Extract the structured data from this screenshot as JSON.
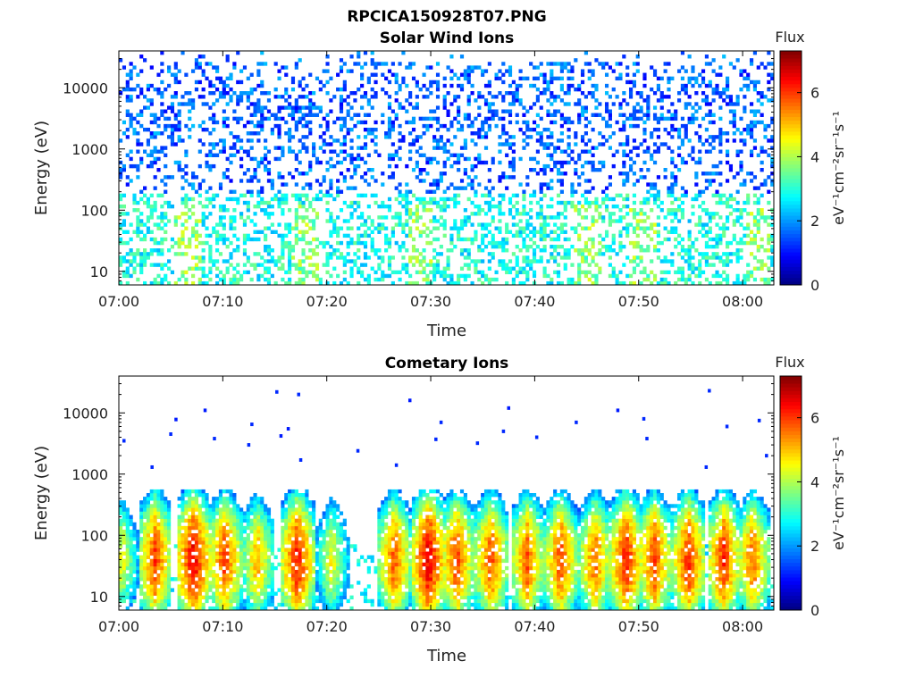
{
  "figure": {
    "title": "RPCICA150928T07.PNG"
  },
  "chart_data": [
    {
      "type": "heatmap",
      "title": "Solar Wind Ions",
      "xlabel": "Time",
      "ylabel": "Energy (eV)",
      "x_ticks": [
        "07:00",
        "07:10",
        "07:20",
        "07:30",
        "07:40",
        "07:50",
        "08:00"
      ],
      "y_ticks": [
        "10",
        "100",
        "1000",
        "10000"
      ],
      "y_scale": "log",
      "x_range_minutes": [
        0,
        63
      ],
      "y_range": [
        6,
        40000
      ],
      "colorbar": {
        "label_top": "Flux",
        "label_side": "eV⁻¹cm⁻²sr⁻¹s⁻¹",
        "ticks": [
          "0",
          "2",
          "4",
          "6"
        ],
        "range": [
          0,
          7.3
        ],
        "colormap": "jet"
      },
      "description_data": {
        "dominant_levels": "mostly 1–2.5 above 200 eV; 2.5–4 between 10 and 200 eV",
        "features": "sparse speckle across 6–40000 eV with stronger low-energy bands near 07:06, 07:18, 07:29, 07:45, 08:01"
      }
    },
    {
      "type": "heatmap",
      "title": "Cometary Ions",
      "xlabel": "Time",
      "ylabel": "Energy (eV)",
      "x_ticks": [
        "07:00",
        "07:10",
        "07:20",
        "07:30",
        "07:40",
        "07:50",
        "08:00"
      ],
      "y_ticks": [
        "10",
        "100",
        "1000",
        "10000"
      ],
      "y_scale": "log",
      "x_range_minutes": [
        0,
        63
      ],
      "y_range": [
        6,
        40000
      ],
      "colorbar": {
        "label_top": "Flux",
        "label_side": "eV⁻¹cm⁻²sr⁻¹s⁻¹",
        "ticks": [
          "0",
          "2",
          "4",
          "6"
        ],
        "range": [
          0,
          7.3
        ],
        "colormap": "jet"
      },
      "burst_centers_minutes": [
        0.3,
        3.5,
        7.2,
        10.2,
        13.3,
        17.2,
        20.5,
        26.5,
        29.8,
        32.5,
        35.8,
        39.3,
        42.5,
        45.8,
        48.8,
        51.5,
        54.8,
        58.2,
        61.0
      ],
      "burst_peak_flux": [
        4.5,
        6.0,
        6.6,
        6.0,
        5.2,
        6.3,
        4.6,
        5.8,
        6.6,
        6.0,
        5.9,
        5.8,
        5.9,
        5.7,
        6.3,
        6.0,
        6.1,
        6.1,
        5.7
      ],
      "burst_peak_energy_eV": 40,
      "sparse_high_energy_points": [
        {
          "t": 0.5,
          "e": 3500,
          "f": 1.2
        },
        {
          "t": 3.2,
          "e": 1300,
          "f": 1.2
        },
        {
          "t": 5.0,
          "e": 4500,
          "f": 1.2
        },
        {
          "t": 5.5,
          "e": 7800,
          "f": 1.1
        },
        {
          "t": 8.3,
          "e": 11000,
          "f": 1.1
        },
        {
          "t": 9.2,
          "e": 3800,
          "f": 1.2
        },
        {
          "t": 12.5,
          "e": 3000,
          "f": 1.2
        },
        {
          "t": 12.8,
          "e": 6500,
          "f": 1.2
        },
        {
          "t": 15.2,
          "e": 22000,
          "f": 1.2
        },
        {
          "t": 15.6,
          "e": 4200,
          "f": 1.1
        },
        {
          "t": 16.3,
          "e": 5500,
          "f": 1.1
        },
        {
          "t": 17.3,
          "e": 20000,
          "f": 1.2
        },
        {
          "t": 17.5,
          "e": 1700,
          "f": 1.2
        },
        {
          "t": 23.0,
          "e": 2400,
          "f": 1.2
        },
        {
          "t": 26.7,
          "e": 1400,
          "f": 1.2
        },
        {
          "t": 28.0,
          "e": 16000,
          "f": 1.1
        },
        {
          "t": 30.5,
          "e": 3700,
          "f": 1.2
        },
        {
          "t": 31.0,
          "e": 7000,
          "f": 1.2
        },
        {
          "t": 34.5,
          "e": 3200,
          "f": 1.2
        },
        {
          "t": 37.0,
          "e": 5000,
          "f": 1.2
        },
        {
          "t": 37.5,
          "e": 12000,
          "f": 1.1
        },
        {
          "t": 40.2,
          "e": 4000,
          "f": 1.2
        },
        {
          "t": 44.0,
          "e": 7000,
          "f": 1.2
        },
        {
          "t": 48.0,
          "e": 11000,
          "f": 1.1
        },
        {
          "t": 50.5,
          "e": 8000,
          "f": 1.2
        },
        {
          "t": 50.8,
          "e": 3800,
          "f": 1.2
        },
        {
          "t": 56.5,
          "e": 1300,
          "f": 1.2
        },
        {
          "t": 56.8,
          "e": 23000,
          "f": 1.2
        },
        {
          "t": 58.5,
          "e": 6000,
          "f": 1.2
        },
        {
          "t": 61.6,
          "e": 7500,
          "f": 1.2
        },
        {
          "t": 62.3,
          "e": 2000,
          "f": 1.2
        }
      ]
    }
  ]
}
